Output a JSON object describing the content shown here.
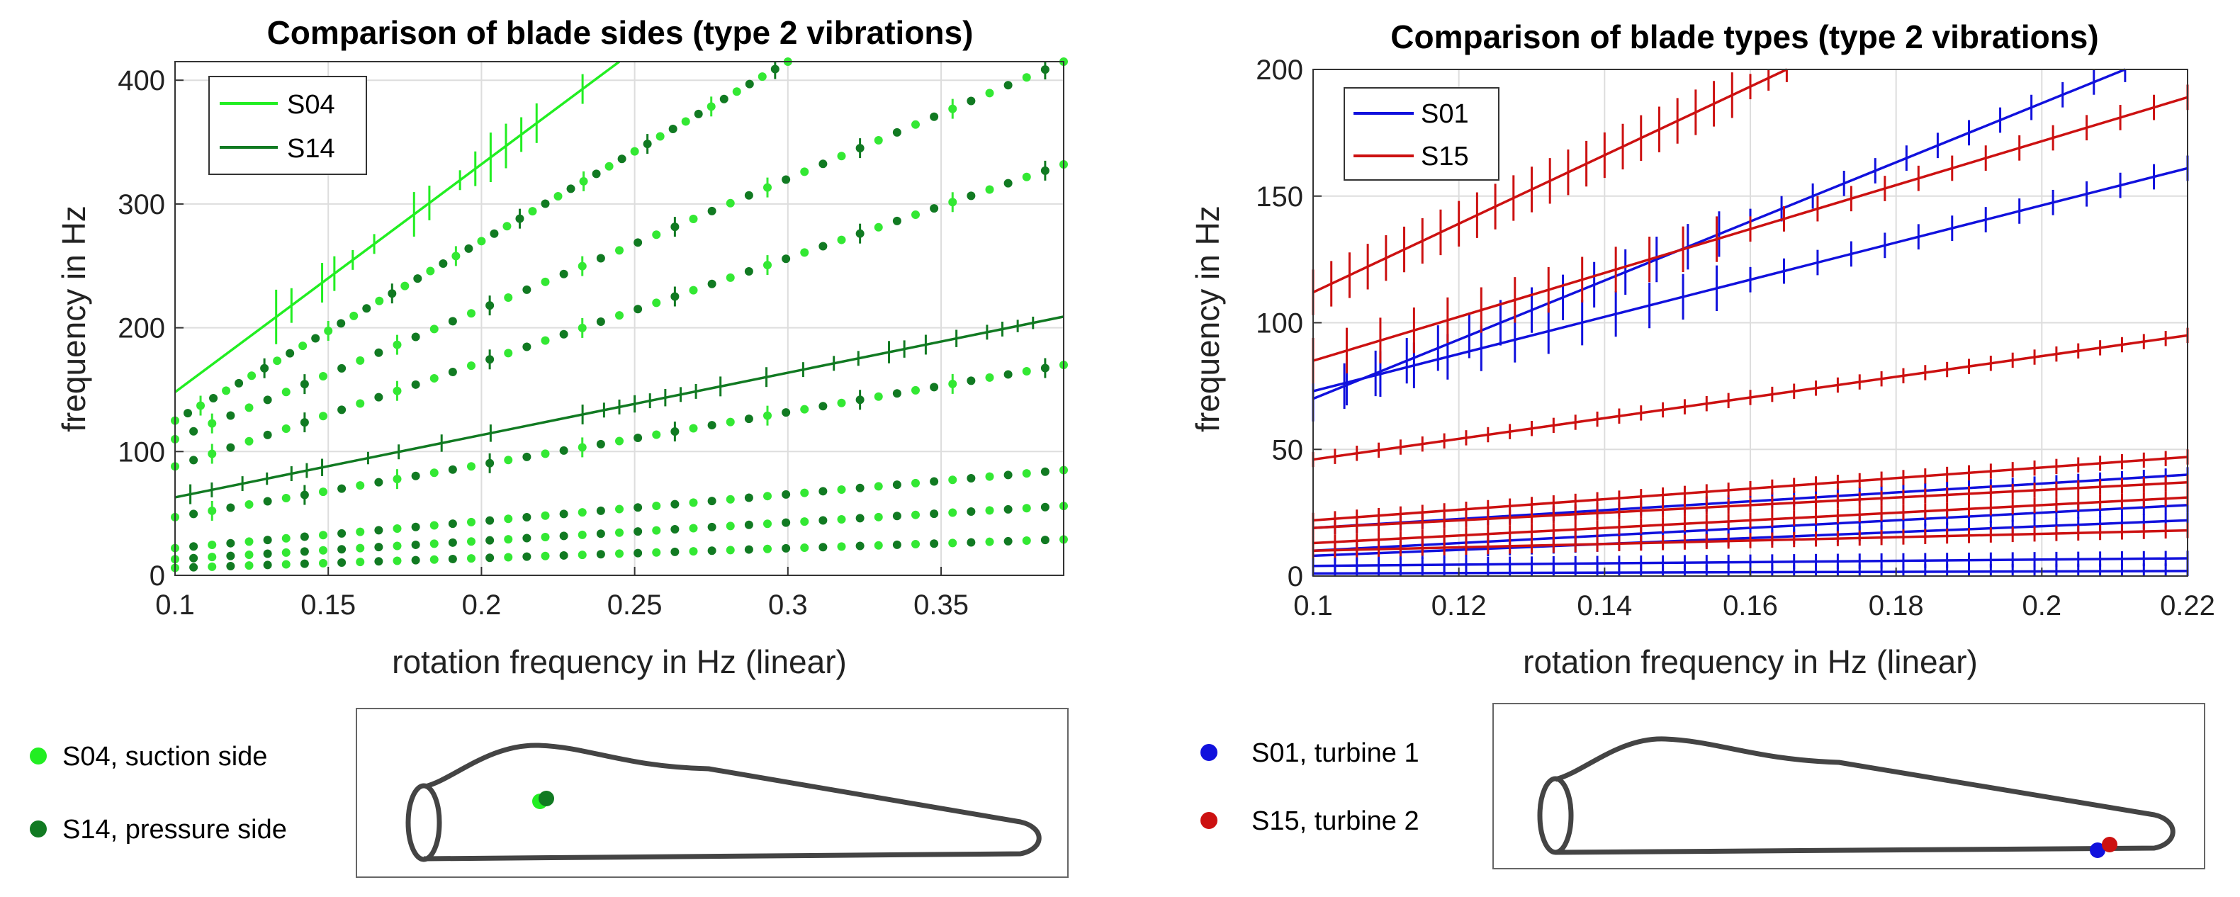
{
  "chart_data": [
    {
      "type": "line",
      "title": "Comparison of blade sides (type 2 vibrations)",
      "xlabel": "rotation frequency in Hz (linear)",
      "ylabel": "frequency in Hz",
      "xlim": [
        0.1,
        0.39
      ],
      "ylim": [
        0,
        415
      ],
      "xticks": [
        0.1,
        0.15,
        0.2,
        0.25,
        0.3,
        0.35
      ],
      "xtick_labels": [
        "0.1",
        "0.15",
        "0.2",
        "0.25",
        "0.3",
        "0.35"
      ],
      "yticks": [
        0,
        100,
        200,
        300,
        400
      ],
      "ytick_labels": [
        "0",
        "100",
        "200",
        "300",
        "400"
      ],
      "grid": true,
      "legend": "top-left",
      "series": [
        {
          "name": "S04",
          "color": "#22ee22",
          "style": "line",
          "x": [
            0.1,
            0.245
          ],
          "y": [
            148,
            415
          ],
          "error_x": [
            0.133,
            0.138,
            0.148,
            0.152,
            0.158,
            0.165,
            0.178,
            0.183,
            0.193,
            0.198,
            0.203,
            0.208,
            0.213,
            0.218,
            0.233
          ],
          "error_half": [
            22,
            14,
            16,
            14,
            8,
            8,
            18,
            14,
            8,
            14,
            20,
            18,
            14,
            16,
            12
          ]
        },
        {
          "name": "S14",
          "color": "#117a22",
          "style": "line",
          "x": [
            0.1,
            0.39
          ],
          "y": [
            63,
            209
          ],
          "error_x": [
            0.105,
            0.112,
            0.122,
            0.13,
            0.138,
            0.143,
            0.148,
            0.163,
            0.173,
            0.187,
            0.203,
            0.233,
            0.24,
            0.245,
            0.25,
            0.255,
            0.26,
            0.265,
            0.27,
            0.278,
            0.293,
            0.305,
            0.315,
            0.323,
            0.333,
            0.338,
            0.345,
            0.355,
            0.365,
            0.37,
            0.375,
            0.38
          ],
          "error_half": [
            8,
            6,
            6,
            5,
            6,
            6,
            7,
            5,
            6,
            7,
            7,
            8,
            6,
            6,
            7,
            6,
            7,
            6,
            6,
            8,
            8,
            6,
            6,
            6,
            9,
            7,
            8,
            7,
            6,
            6,
            5,
            5
          ]
        }
      ],
      "harmonic_series": {
        "markers": "dots",
        "colors": [
          "#33e833",
          "#117a22"
        ],
        "lines": [
          {
            "x": [
              0.1,
              0.3
            ],
            "y": [
              125,
              415
            ]
          },
          {
            "x": [
              0.1,
              0.39
            ],
            "y": [
              110,
              415
            ]
          },
          {
            "x": [
              0.1,
              0.39
            ],
            "y": [
              88,
              332
            ]
          },
          {
            "x": [
              0.1,
              0.39
            ],
            "y": [
              47,
              170
            ]
          },
          {
            "x": [
              0.1,
              0.39
            ],
            "y": [
              22,
              85
            ]
          },
          {
            "x": [
              0.1,
              0.39
            ],
            "y": [
              13,
              56
            ]
          },
          {
            "x": [
              0.1,
              0.39
            ],
            "y": [
              6,
              29
            ]
          }
        ]
      }
    },
    {
      "type": "line",
      "title": "Comparison of blade types (type 2 vibrations)",
      "xlabel": "rotation frequency in Hz (linear)",
      "ylabel": "frequency in Hz",
      "xlim": [
        0.1,
        0.22
      ],
      "ylim": [
        0,
        200
      ],
      "xticks": [
        0.1,
        0.12,
        0.14,
        0.16,
        0.18,
        0.2,
        0.22
      ],
      "xtick_labels": [
        "0.1",
        "0.12",
        "0.14",
        "0.16",
        "0.18",
        "0.2",
        "0.22"
      ],
      "yticks": [
        0,
        50,
        100,
        150,
        200
      ],
      "ytick_labels": [
        "0",
        "50",
        "100",
        "150",
        "200"
      ],
      "grid": true,
      "legend": "top-left",
      "series": [
        {
          "name": "S01",
          "color": "#1111dd",
          "style": "lines",
          "lines": [
            {
              "x": [
                0.1,
                0.22
              ],
              "y": [
                70,
                210
              ]
            },
            {
              "x": [
                0.1,
                0.22
              ],
              "y": [
                73,
                161
              ]
            },
            {
              "x": [
                0.1,
                0.22
              ],
              "y": [
                19,
                40
              ]
            },
            {
              "x": [
                0.1,
                0.22
              ],
              "y": [
                10,
                28
              ]
            },
            {
              "x": [
                0.1,
                0.22
              ],
              "y": [
                8,
                22
              ]
            },
            {
              "x": [
                0.1,
                0.22
              ],
              "y": [
                4,
                7
              ]
            },
            {
              "x": [
                0.1,
                0.22
              ],
              "y": [
                1,
                2
              ]
            }
          ]
        },
        {
          "name": "S15",
          "color": "#cc1111",
          "style": "lines",
          "lines": [
            {
              "x": [
                0.1,
                0.165
              ],
              "y": [
                112,
                200
              ]
            },
            {
              "x": [
                0.1,
                0.22
              ],
              "y": [
                85,
                189
              ]
            },
            {
              "x": [
                0.1,
                0.22
              ],
              "y": [
                46,
                95
              ]
            },
            {
              "x": [
                0.1,
                0.22
              ],
              "y": [
                22,
                47
              ]
            },
            {
              "x": [
                0.1,
                0.22
              ],
              "y": [
                19,
                37
              ]
            },
            {
              "x": [
                0.1,
                0.22
              ],
              "y": [
                13,
                31
              ]
            },
            {
              "x": [
                0.1,
                0.22
              ],
              "y": [
                10,
                18
              ]
            }
          ]
        }
      ]
    }
  ],
  "panel_left": {
    "legend": {
      "s04": "S04",
      "s14": "S14"
    },
    "bottom_legend": [
      {
        "label": "S04, suction side",
        "color": "#22ee22"
      },
      {
        "label": "S14, pressure side",
        "color": "#117a22"
      }
    ]
  },
  "panel_right": {
    "legend": {
      "s01": "S01",
      "s15": "S15"
    },
    "bottom_legend": [
      {
        "label": "S01, turbine 1",
        "color": "#1111dd"
      },
      {
        "label": "S15, turbine 2",
        "color": "#cc1111"
      }
    ]
  },
  "colors": {
    "blade_outline": "#444444",
    "axis": "#333333",
    "grid": "#dddddd"
  }
}
